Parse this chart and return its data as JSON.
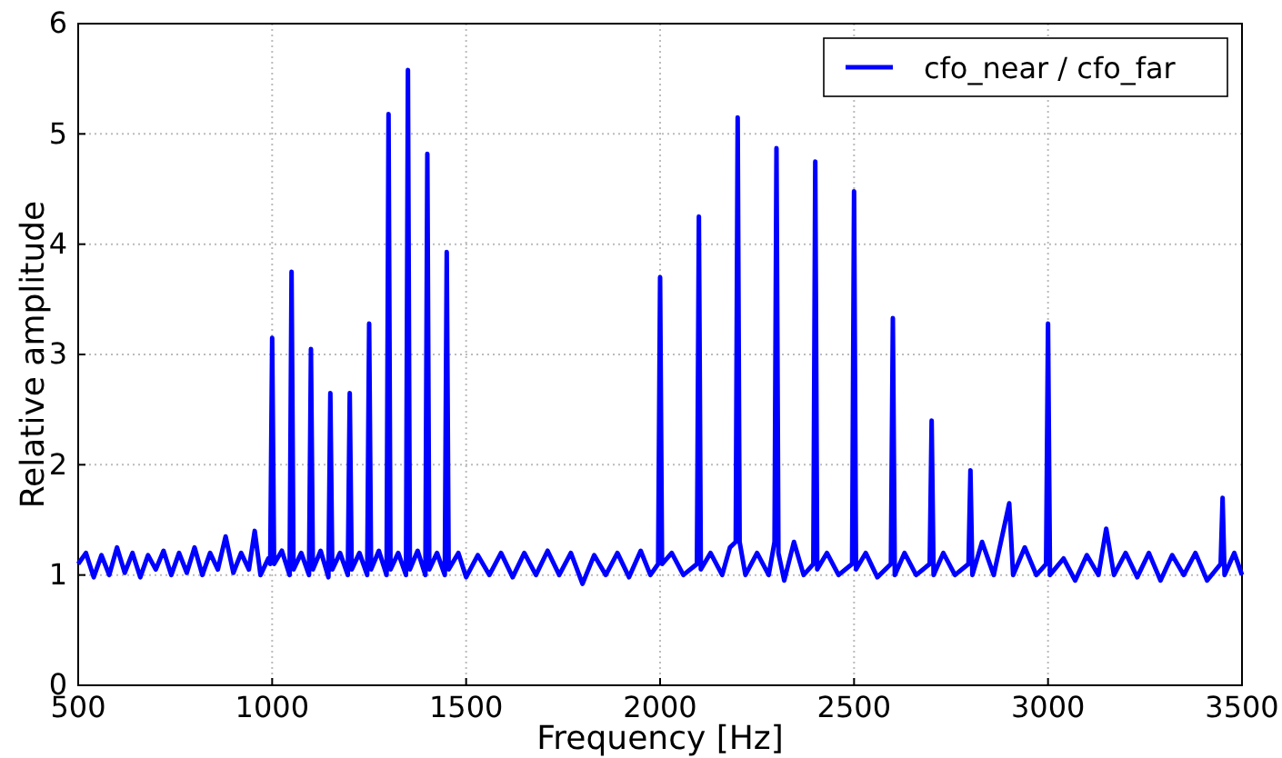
{
  "chart_data": {
    "type": "line",
    "xlabel": "Frequency [Hz]",
    "ylabel": "Relative amplitude",
    "xlim": [
      500,
      3500
    ],
    "xticks": [
      500,
      1000,
      1500,
      2000,
      2500,
      3000,
      3500
    ],
    "ylim": [
      0,
      6
    ],
    "yticks": [
      0,
      1,
      2,
      3,
      4,
      5,
      6
    ],
    "grid": true,
    "legend": "top right",
    "line_style": "solid",
    "series": [
      {
        "name": "cfo_near / cfo_far",
        "color": "#0000ff",
        "x": [
          500,
          520,
          540,
          560,
          580,
          600,
          620,
          640,
          660,
          680,
          700,
          720,
          740,
          760,
          780,
          800,
          820,
          840,
          860,
          880,
          900,
          920,
          940,
          955,
          970,
          990,
          995,
          1000,
          1005,
          1025,
          1045,
          1050,
          1055,
          1075,
          1095,
          1100,
          1105,
          1125,
          1145,
          1150,
          1155,
          1175,
          1195,
          1200,
          1205,
          1225,
          1245,
          1250,
          1255,
          1275,
          1295,
          1300,
          1305,
          1325,
          1345,
          1350,
          1355,
          1375,
          1395,
          1400,
          1405,
          1425,
          1445,
          1450,
          1455,
          1480,
          1500,
          1530,
          1560,
          1590,
          1620,
          1650,
          1680,
          1710,
          1740,
          1770,
          1800,
          1830,
          1860,
          1890,
          1920,
          1950,
          1975,
          1995,
          2000,
          2005,
          2030,
          2060,
          2095,
          2100,
          2105,
          2130,
          2160,
          2180,
          2195,
          2200,
          2205,
          2220,
          2250,
          2280,
          2295,
          2300,
          2305,
          2320,
          2345,
          2370,
          2395,
          2400,
          2405,
          2430,
          2460,
          2495,
          2500,
          2505,
          2530,
          2560,
          2595,
          2600,
          2605,
          2630,
          2660,
          2695,
          2700,
          2705,
          2730,
          2760,
          2795,
          2800,
          2805,
          2830,
          2860,
          2900,
          2910,
          2940,
          2970,
          2995,
          3000,
          3005,
          3040,
          3070,
          3100,
          3130,
          3150,
          3170,
          3200,
          3230,
          3260,
          3290,
          3320,
          3350,
          3380,
          3410,
          3445,
          3450,
          3455,
          3480,
          3500
        ],
        "values": [
          1.1,
          1.2,
          0.98,
          1.18,
          1.0,
          1.25,
          1.02,
          1.2,
          0.98,
          1.18,
          1.05,
          1.22,
          1.0,
          1.2,
          1.02,
          1.25,
          1.0,
          1.2,
          1.05,
          1.35,
          1.02,
          1.2,
          1.05,
          1.4,
          1.0,
          1.15,
          1.1,
          3.15,
          1.1,
          1.22,
          1.0,
          3.75,
          1.05,
          1.2,
          1.0,
          3.05,
          1.05,
          1.22,
          0.98,
          2.65,
          1.05,
          1.2,
          1.0,
          2.65,
          1.05,
          1.2,
          1.0,
          3.28,
          1.05,
          1.22,
          1.0,
          5.18,
          1.05,
          1.2,
          1.0,
          5.58,
          1.05,
          1.22,
          1.0,
          4.82,
          1.05,
          1.2,
          1.0,
          3.93,
          1.05,
          1.2,
          0.98,
          1.18,
          1.0,
          1.2,
          0.98,
          1.2,
          1.0,
          1.22,
          1.0,
          1.2,
          0.92,
          1.18,
          1.0,
          1.2,
          0.98,
          1.22,
          1.0,
          1.1,
          3.7,
          1.1,
          1.2,
          1.0,
          1.1,
          4.25,
          1.05,
          1.2,
          1.0,
          1.25,
          1.3,
          5.15,
          1.3,
          1.0,
          1.2,
          1.0,
          1.3,
          4.87,
          1.2,
          0.95,
          1.3,
          1.0,
          1.1,
          4.75,
          1.05,
          1.2,
          1.0,
          1.1,
          4.48,
          1.05,
          1.2,
          0.98,
          1.1,
          3.33,
          1.0,
          1.2,
          1.0,
          1.1,
          2.4,
          1.0,
          1.2,
          1.0,
          1.1,
          1.95,
          1.0,
          1.3,
          1.0,
          1.65,
          1.0,
          1.25,
          1.0,
          1.1,
          3.28,
          1.0,
          1.15,
          0.95,
          1.18,
          1.0,
          1.42,
          1.0,
          1.2,
          0.98,
          1.2,
          0.95,
          1.18,
          1.0,
          1.2,
          0.95,
          1.1,
          1.7,
          1.0,
          1.2,
          1.0
        ]
      }
    ]
  }
}
